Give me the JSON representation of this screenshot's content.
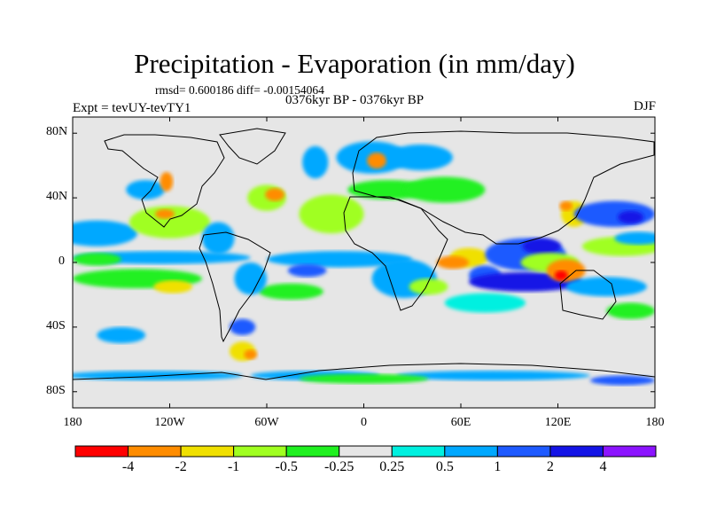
{
  "title": "Precipitation - Evaporation (in mm/day)",
  "stats_line": "rmsd= 0.600186 diff= -0.00154064",
  "period": "0376kyr BP - 0376kyr BP",
  "experiment": "Expt = tevUY-tevTY1",
  "season": "DJF",
  "y_ticks": [
    {
      "label": "80N",
      "lat": 80
    },
    {
      "label": "40N",
      "lat": 40
    },
    {
      "label": "0",
      "lat": 0
    },
    {
      "label": "40S",
      "lat": -40
    },
    {
      "label": "80S",
      "lat": -80
    }
  ],
  "x_ticks": [
    {
      "label": "180",
      "lon": -180
    },
    {
      "label": "120W",
      "lon": -120
    },
    {
      "label": "60W",
      "lon": -60
    },
    {
      "label": "0",
      "lon": 0
    },
    {
      "label": "60E",
      "lon": 60
    },
    {
      "label": "120E",
      "lon": 120
    },
    {
      "label": "180",
      "lon": 180
    }
  ],
  "colorbar": {
    "colors": [
      "#ff0000",
      "#ff8c00",
      "#f0e000",
      "#a0ff20",
      "#20f020",
      "#e6e6e6",
      "#00f0e0",
      "#00a8ff",
      "#1e5aff",
      "#1414e6",
      "#8c14ff"
    ],
    "labels": [
      "-4",
      "-2",
      "-1",
      "-0.5",
      "-0.25",
      "0.25",
      "0.5",
      "1",
      "2",
      "4"
    ]
  },
  "map_colors": {
    "background": "#e6e6e6",
    "coastline": "#000000"
  },
  "chart_data": {
    "type": "heatmap",
    "variable": "Precipitation - Evaporation",
    "units": "mm/day",
    "projection": "cylindrical equidistant",
    "lon_range": [
      -180,
      180
    ],
    "lat_range": [
      -90,
      90
    ],
    "levels": [
      -4,
      -2,
      -1,
      -0.5,
      -0.25,
      0.25,
      0.5,
      1,
      2,
      4
    ],
    "anomaly_regions": [
      {
        "lon": -165,
        "lat": 18,
        "rx": 25,
        "ry": 8,
        "value": 0.6
      },
      {
        "lon": -120,
        "lat": 25,
        "rx": 25,
        "ry": 10,
        "value": -0.6
      },
      {
        "lon": -123,
        "lat": 30,
        "rx": 6,
        "ry": 3,
        "value": -2.5
      },
      {
        "lon": -140,
        "lat": -10,
        "rx": 40,
        "ry": 6,
        "value": -0.5
      },
      {
        "lon": -118,
        "lat": -15,
        "rx": 12,
        "ry": 4,
        "value": -1.5
      },
      {
        "lon": -125,
        "lat": 3,
        "rx": 55,
        "ry": 4,
        "value": 0.5
      },
      {
        "lon": -165,
        "lat": 2,
        "rx": 15,
        "ry": 4,
        "value": -0.5
      },
      {
        "lon": -135,
        "lat": 45,
        "rx": 12,
        "ry": 6,
        "value": 0.7
      },
      {
        "lon": -122,
        "lat": 50,
        "rx": 4,
        "ry": 6,
        "value": -2.5
      },
      {
        "lon": -90,
        "lat": 15,
        "rx": 10,
        "ry": 10,
        "value": 0.6
      },
      {
        "lon": -60,
        "lat": 40,
        "rx": 12,
        "ry": 8,
        "value": -0.8
      },
      {
        "lon": -55,
        "lat": 42,
        "rx": 6,
        "ry": 4,
        "value": -2.5
      },
      {
        "lon": -30,
        "lat": 62,
        "rx": 8,
        "ry": 10,
        "value": 0.6
      },
      {
        "lon": -20,
        "lat": 30,
        "rx": 20,
        "ry": 12,
        "value": -0.6
      },
      {
        "lon": -15,
        "lat": 2,
        "rx": 45,
        "ry": 5,
        "value": 0.6
      },
      {
        "lon": -35,
        "lat": -5,
        "rx": 12,
        "ry": 4,
        "value": 1.2
      },
      {
        "lon": -45,
        "lat": -18,
        "rx": 20,
        "ry": 5,
        "value": -0.5
      },
      {
        "lon": -70,
        "lat": -10,
        "rx": 10,
        "ry": 10,
        "value": 0.6
      },
      {
        "lon": -75,
        "lat": -55,
        "rx": 8,
        "ry": 6,
        "value": -1.2
      },
      {
        "lon": -70,
        "lat": -57,
        "rx": 4,
        "ry": 3,
        "value": -3
      },
      {
        "lon": -75,
        "lat": -40,
        "rx": 8,
        "ry": 5,
        "value": 1.2
      },
      {
        "lon": -150,
        "lat": -45,
        "rx": 15,
        "ry": 5,
        "value": 0.6
      },
      {
        "lon": 5,
        "lat": 65,
        "rx": 22,
        "ry": 10,
        "value": 0.7
      },
      {
        "lon": 8,
        "lat": 63,
        "rx": 6,
        "ry": 5,
        "value": -2.5
      },
      {
        "lon": 15,
        "lat": 45,
        "rx": 25,
        "ry": 6,
        "value": -0.5
      },
      {
        "lon": 35,
        "lat": 65,
        "rx": 20,
        "ry": 8,
        "value": 0.5
      },
      {
        "lon": 50,
        "lat": 45,
        "rx": 25,
        "ry": 8,
        "value": -0.3
      },
      {
        "lon": 25,
        "lat": -10,
        "rx": 20,
        "ry": 12,
        "value": 0.6
      },
      {
        "lon": 40,
        "lat": -15,
        "rx": 12,
        "ry": 5,
        "value": -0.6
      },
      {
        "lon": 65,
        "lat": 3,
        "rx": 12,
        "ry": 6,
        "value": -2
      },
      {
        "lon": 55,
        "lat": 0,
        "rx": 10,
        "ry": 4,
        "value": -3
      },
      {
        "lon": 75,
        "lat": -8,
        "rx": 10,
        "ry": 6,
        "value": 1.2
      },
      {
        "lon": 100,
        "lat": -12,
        "rx": 35,
        "ry": 6,
        "value": 2.5
      },
      {
        "lon": 100,
        "lat": 5,
        "rx": 25,
        "ry": 10,
        "value": 1.5
      },
      {
        "lon": 110,
        "lat": 10,
        "rx": 12,
        "ry": 5,
        "value": 2.5
      },
      {
        "lon": 75,
        "lat": -25,
        "rx": 25,
        "ry": 6,
        "value": 0.4
      },
      {
        "lon": 115,
        "lat": 0,
        "rx": 18,
        "ry": 6,
        "value": -0.8
      },
      {
        "lon": 125,
        "lat": -5,
        "rx": 12,
        "ry": 7,
        "value": -2.5
      },
      {
        "lon": 122,
        "lat": -8,
        "rx": 4,
        "ry": 3,
        "value": -5
      },
      {
        "lon": 130,
        "lat": 30,
        "rx": 8,
        "ry": 8,
        "value": -1.5
      },
      {
        "lon": 125,
        "lat": 35,
        "rx": 4,
        "ry": 3,
        "value": -3
      },
      {
        "lon": 155,
        "lat": 30,
        "rx": 25,
        "ry": 8,
        "value": 1.2
      },
      {
        "lon": 165,
        "lat": 28,
        "rx": 8,
        "ry": 4,
        "value": 2.5
      },
      {
        "lon": 160,
        "lat": 10,
        "rx": 25,
        "ry": 6,
        "value": -0.6
      },
      {
        "lon": 170,
        "lat": 15,
        "rx": 15,
        "ry": 4,
        "value": 0.6
      },
      {
        "lon": 150,
        "lat": -15,
        "rx": 25,
        "ry": 6,
        "value": 0.6
      },
      {
        "lon": 165,
        "lat": -30,
        "rx": 15,
        "ry": 5,
        "value": -0.5
      },
      {
        "lon": -130,
        "lat": -70,
        "rx": 55,
        "ry": 3,
        "value": 0.6
      },
      {
        "lon": -30,
        "lat": -70,
        "rx": 40,
        "ry": 3,
        "value": 0.6
      },
      {
        "lon": 80,
        "lat": -70,
        "rx": 60,
        "ry": 3,
        "value": 0.5
      },
      {
        "lon": 160,
        "lat": -73,
        "rx": 20,
        "ry": 3,
        "value": 1.2
      },
      {
        "lon": 0,
        "lat": -72,
        "rx": 40,
        "ry": 3,
        "value": -0.3
      }
    ]
  }
}
